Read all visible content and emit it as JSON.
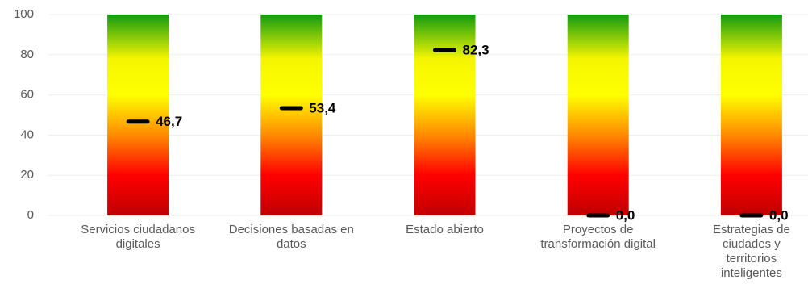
{
  "chart_data": {
    "type": "marker",
    "categories": [
      "Servicios ciudadanos digitales",
      "Decisiones basadas en datos",
      "Estado abierto",
      "Proyectos de transformación digital",
      "Estrategias de ciudades y territorios inteligentes"
    ],
    "values": [
      46.7,
      53.4,
      82.3,
      0,
      0
    ],
    "value_labels": [
      "46,7",
      "53,4",
      "82,3",
      "0,0",
      "0,0"
    ],
    "color": "#000000",
    "ylim": [
      0,
      100
    ],
    "yticks": [
      0,
      20,
      40,
      60,
      80,
      100
    ],
    "grid": true
  }
}
